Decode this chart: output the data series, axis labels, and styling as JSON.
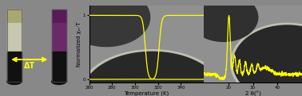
{
  "arrow_color": "#ffff00",
  "delta_t_label": "ΔT",
  "ylabel": "Normalized χₘ·T",
  "xlabel": "Temperature (K)",
  "xlabel2": "2 θ(°)",
  "curve_color": "#ffff00",
  "axis_label_size": 5,
  "tick_label_size": 4,
  "vial1_top": "#c8c8b0",
  "vial1_cap": "#a8a870",
  "vial2_top": "#6a2a6a",
  "vial2_cap": "#5a1a5a",
  "vial_bottom": "#111111",
  "left_bg": "#a0a090",
  "mid_bg": "#909090",
  "right_bg": "#909090",
  "fig_bg": "#888888"
}
